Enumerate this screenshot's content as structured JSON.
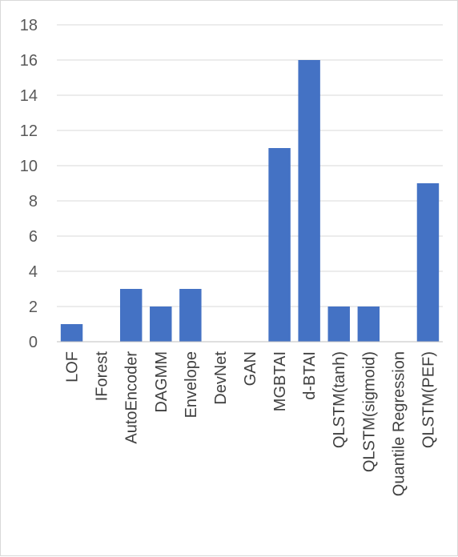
{
  "chart_data": {
    "type": "bar",
    "categories": [
      "LOF",
      "IForest",
      "AutoEncoder",
      "DAGMM",
      "Envelope",
      "DevNet",
      "GAN",
      "MGBTAI",
      "d-BTAI",
      "QLSTM(tanh)",
      "QLSTM(sigmoid)",
      "Quantile Regression",
      "QLSTM(PEF)"
    ],
    "values": [
      1,
      0,
      3,
      2,
      3,
      0,
      0,
      11,
      16,
      2,
      2,
      0,
      9
    ],
    "title": "",
    "xlabel": "",
    "ylabel": "",
    "ylim": [
      0,
      18
    ],
    "yticks": [
      0,
      2,
      4,
      6,
      8,
      10,
      12,
      14,
      16,
      18
    ],
    "grid": true,
    "legend": "none",
    "bar_color": "#4472c4"
  }
}
